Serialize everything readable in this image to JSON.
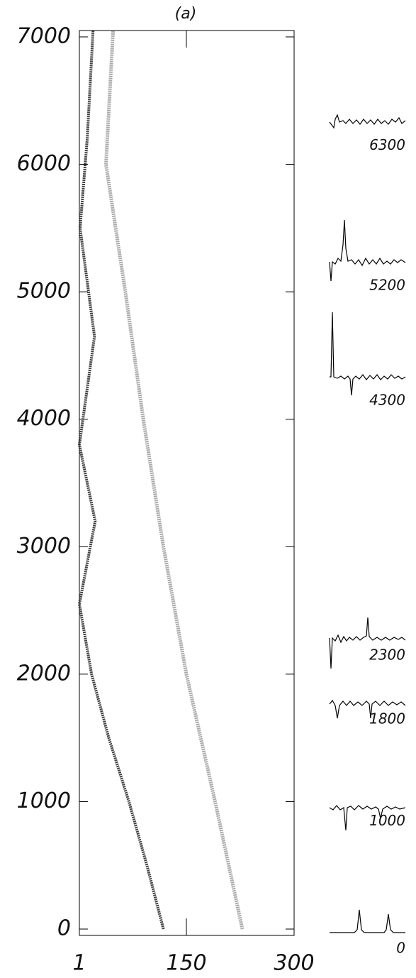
{
  "chart_data": {
    "type": "line",
    "title": "(a)",
    "xlim": [
      1,
      300
    ],
    "xticks": [
      1,
      150,
      300
    ],
    "ylim": [
      -50,
      7050
    ],
    "yticks": [
      0,
      1000,
      2000,
      3000,
      4000,
      5000,
      6000,
      7000
    ],
    "series": [
      {
        "color": "#222222",
        "x": [
          118,
          95,
          70,
          42,
          18,
          1,
          23,
          1,
          22,
          2,
          12,
          20
        ],
        "values": [
          0,
          500,
          1000,
          1500,
          2000,
          2550,
          3200,
          3800,
          4650,
          5500,
          6200,
          7050
        ]
      },
      {
        "color": "#666666",
        "x": [
          228,
          190,
          150,
          118,
          90,
          65,
          38,
          48
        ],
        "values": [
          0,
          1000,
          2000,
          3000,
          4000,
          5000,
          6000,
          7050
        ]
      }
    ],
    "profile_labels": [
      6300,
      5200,
      4300,
      2300,
      1800,
      1000,
      0
    ]
  }
}
